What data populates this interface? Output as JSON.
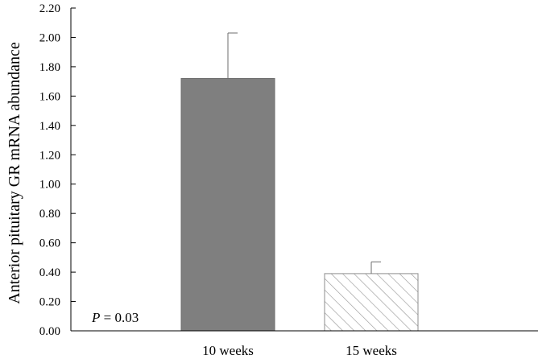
{
  "chart_data": {
    "type": "bar",
    "title": "",
    "xlabel": "",
    "ylabel": "Anterior pituitary GR mRNA abundance",
    "ylim": [
      0,
      2.2
    ],
    "ytick_values": [
      0,
      0.2,
      0.4,
      0.6,
      0.8,
      1.0,
      1.2,
      1.4,
      1.6,
      1.8,
      2.0,
      2.2
    ],
    "ytick_labels": [
      "0.00",
      "0.20",
      "0.40",
      "0.60",
      "0.80",
      "1.00",
      "1.20",
      "1.40",
      "1.60",
      "1.80",
      "2.00",
      "2.20"
    ],
    "categories": [
      "10 weeks",
      "15 weeks"
    ],
    "values": [
      1.72,
      0.39
    ],
    "error_upper": [
      2.03,
      0.47
    ],
    "fills": [
      "solid",
      "hatched"
    ],
    "colors": {
      "solid": "#7f7f7f",
      "hatch": "#9a9a9a"
    },
    "grid": false,
    "legend": "none",
    "annotation": {
      "italic": "P",
      "text": " = 0.03"
    }
  }
}
